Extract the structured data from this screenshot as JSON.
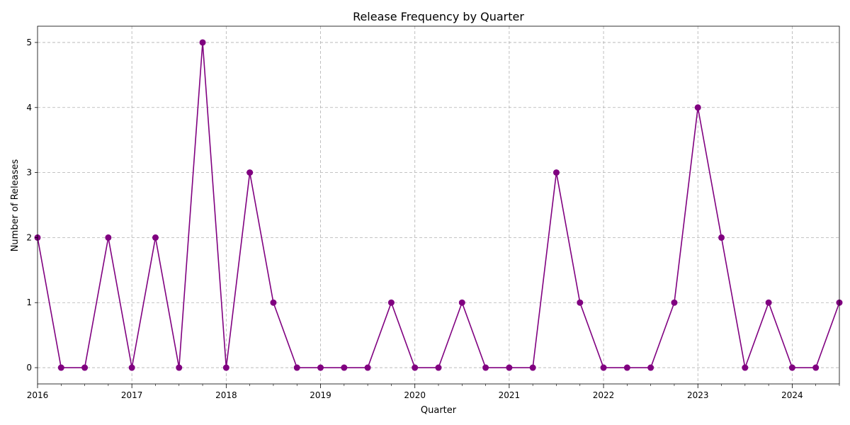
{
  "chart_data": {
    "type": "line",
    "title": "Release Frequency by Quarter",
    "xlabel": "Quarter",
    "ylabel": "Number of Releases",
    "x": [
      "2016-Q1",
      "2016-Q2",
      "2016-Q3",
      "2016-Q4",
      "2017-Q1",
      "2017-Q2",
      "2017-Q3",
      "2017-Q4",
      "2018-Q1",
      "2018-Q2",
      "2018-Q3",
      "2018-Q4",
      "2019-Q1",
      "2019-Q2",
      "2019-Q3",
      "2019-Q4",
      "2020-Q1",
      "2020-Q2",
      "2020-Q3",
      "2020-Q4",
      "2021-Q1",
      "2021-Q2",
      "2021-Q3",
      "2021-Q4",
      "2022-Q1",
      "2022-Q2",
      "2022-Q3",
      "2022-Q4",
      "2023-Q1",
      "2023-Q2",
      "2023-Q3",
      "2023-Q4",
      "2024-Q1",
      "2024-Q2",
      "2024-Q3"
    ],
    "series": [
      {
        "values": [
          2,
          0,
          0,
          2,
          0,
          2,
          0,
          5,
          0,
          3,
          1,
          0,
          0,
          0,
          0,
          1,
          0,
          0,
          1,
          0,
          0,
          0,
          3,
          1,
          0,
          0,
          0,
          1,
          4,
          2,
          0,
          1,
          0,
          0,
          1
        ]
      }
    ],
    "x_ticks": [
      "2016",
      "2017",
      "2018",
      "2019",
      "2020",
      "2021",
      "2022",
      "2023",
      "2024"
    ],
    "y_ticks": [
      "0",
      "1",
      "2",
      "3",
      "4",
      "5"
    ],
    "ylim": [
      -0.25,
      5.25
    ],
    "grid": true,
    "legend": "none",
    "colors": {
      "line": "#800080",
      "marker": "#800080",
      "grid": "#b0b0b0"
    }
  }
}
